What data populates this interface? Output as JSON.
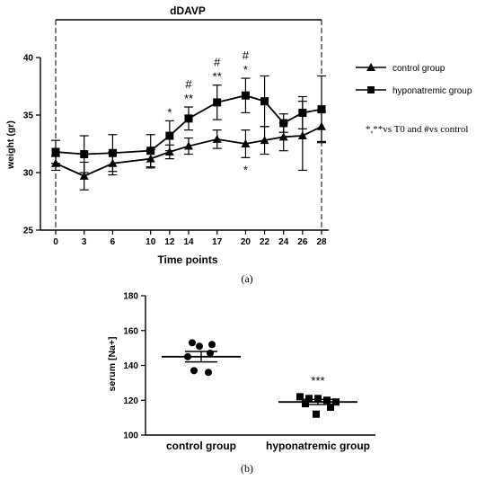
{
  "chart_data": [
    {
      "type": "line",
      "title": "dDAVP",
      "xlabel": "Time points",
      "ylabel": "weight (gr)",
      "ylim": [
        25,
        40
      ],
      "yticks": [
        "25",
        "30",
        "35",
        "40"
      ],
      "categories": [
        "0",
        "3",
        "6",
        "10",
        "12",
        "14",
        "17",
        "20",
        "22",
        "24",
        "26",
        "28"
      ],
      "series": [
        {
          "name": "control group",
          "marker": "triangle",
          "values": [
            30.8,
            29.7,
            30.8,
            31.2,
            31.8,
            32.3,
            32.9,
            32.5,
            32.8,
            33.1,
            33.2,
            34.0
          ],
          "err": [
            0.6,
            1.2,
            1.0,
            0.8,
            0.6,
            0.7,
            0.8,
            1.2,
            1.2,
            1.2,
            3.0,
            1.3
          ]
        },
        {
          "name": "hyponatremic group",
          "marker": "square",
          "values": [
            31.8,
            31.6,
            31.7,
            31.9,
            33.2,
            34.7,
            36.1,
            36.7,
            36.2,
            34.3,
            35.2,
            35.5
          ],
          "err": [
            1.0,
            1.6,
            1.6,
            1.4,
            1.3,
            1.0,
            1.5,
            1.5,
            2.2,
            0.8,
            1.4,
            2.9
          ]
        }
      ],
      "annotations": [
        {
          "category": "12",
          "text": "*",
          "pos": "above"
        },
        {
          "category": "14",
          "text": "**",
          "pos": "above"
        },
        {
          "category": "14",
          "text": "#",
          "pos": "above2"
        },
        {
          "category": "17",
          "text": "**",
          "pos": "above"
        },
        {
          "category": "17",
          "text": "#",
          "pos": "above2"
        },
        {
          "category": "20",
          "text": "*",
          "pos": "above"
        },
        {
          "category": "20",
          "text": "#",
          "pos": "above2"
        },
        {
          "category": "20",
          "text": "*",
          "pos": "below"
        }
      ],
      "note": "*,**vs T0 and #vs control",
      "panel_label": "(a)"
    },
    {
      "type": "scatter",
      "ylabel": "serum [Na+]",
      "ylim": [
        100,
        180
      ],
      "yticks": [
        "100",
        "120",
        "140",
        "160",
        "180"
      ],
      "categories": [
        "control group",
        "hyponatremic group"
      ],
      "series": [
        {
          "name": "control group",
          "marker": "circle",
          "values": [
            153,
            152,
            151,
            147,
            145,
            137,
            136
          ],
          "mean": 145,
          "sem": 3
        },
        {
          "name": "hyponatremic group",
          "marker": "square",
          "values": [
            122,
            121,
            121,
            120,
            119,
            118,
            116,
            112
          ],
          "mean": 119,
          "sem": 1.5
        }
      ],
      "annotation": "***",
      "panel_label": "(b)"
    }
  ]
}
